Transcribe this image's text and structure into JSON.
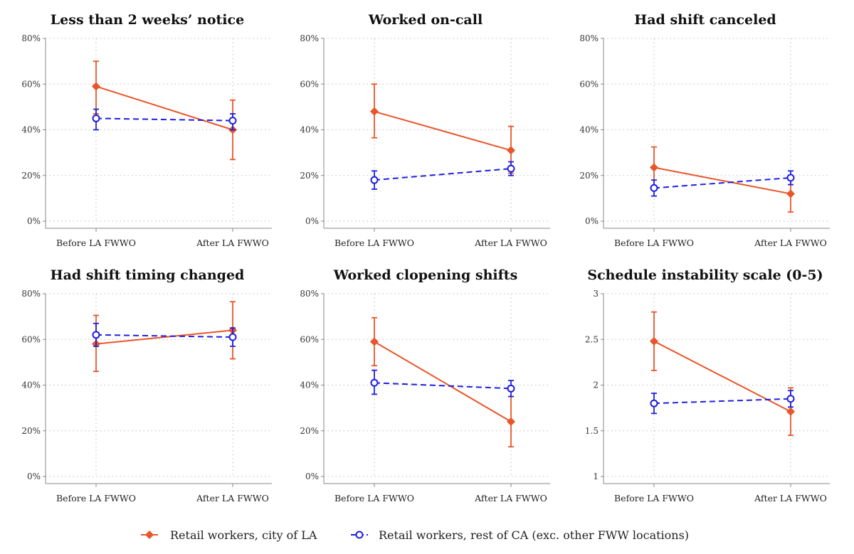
{
  "colors": {
    "la": "#e8562a",
    "ca": "#1f1fe0"
  },
  "legend": {
    "la_label": "Retail workers, city of LA",
    "ca_label": "Retail workers, rest of CA (exc. other FWW locations)"
  },
  "chart_data": [
    {
      "type": "line",
      "title": "Less than 2 weeks’ notice",
      "categories": [
        "Before LA FWWO",
        "After LA FWWO"
      ],
      "ylim": [
        0,
        80
      ],
      "yticks": [
        0,
        20,
        40,
        60,
        80
      ],
      "ytick_labels": [
        "0%",
        "20%",
        "40%",
        "60%",
        "80%"
      ],
      "grid": true,
      "series": [
        {
          "name": "Retail workers, city of LA",
          "values": [
            59,
            40
          ],
          "lower": [
            47,
            27
          ],
          "upper": [
            70,
            53
          ]
        },
        {
          "name": "Retail workers, rest of CA (exc. other FWW locations)",
          "values": [
            45,
            44
          ],
          "lower": [
            40,
            40
          ],
          "upper": [
            49,
            47
          ]
        }
      ]
    },
    {
      "type": "line",
      "title": "Worked on-call",
      "categories": [
        "Before LA FWWO",
        "After LA FWWO"
      ],
      "ylim": [
        0,
        80
      ],
      "yticks": [
        0,
        20,
        40,
        60,
        80
      ],
      "ytick_labels": [
        "0%",
        "20%",
        "40%",
        "60%",
        "80%"
      ],
      "grid": true,
      "series": [
        {
          "name": "Retail workers, city of LA",
          "values": [
            48,
            31
          ],
          "lower": [
            36.5,
            21
          ],
          "upper": [
            60,
            41.5
          ]
        },
        {
          "name": "Retail workers, rest of CA (exc. other FWW locations)",
          "values": [
            18,
            23
          ],
          "lower": [
            14,
            20
          ],
          "upper": [
            22,
            26
          ]
        }
      ]
    },
    {
      "type": "line",
      "title": "Had shift canceled",
      "categories": [
        "Before LA FWWO",
        "After LA FWWO"
      ],
      "ylim": [
        0,
        80
      ],
      "yticks": [
        0,
        20,
        40,
        60,
        80
      ],
      "ytick_labels": [
        "0%",
        "20%",
        "40%",
        "60%",
        "80%"
      ],
      "grid": true,
      "series": [
        {
          "name": "Retail workers, city of LA",
          "values": [
            23.5,
            12
          ],
          "lower": [
            14.5,
            4
          ],
          "upper": [
            32.5,
            20
          ]
        },
        {
          "name": "Retail workers, rest of CA (exc. other FWW locations)",
          "values": [
            14.5,
            19
          ],
          "lower": [
            11,
            16
          ],
          "upper": [
            18,
            22
          ]
        }
      ]
    },
    {
      "type": "line",
      "title": "Had shift timing changed",
      "categories": [
        "Before LA FWWO",
        "After LA FWWO"
      ],
      "ylim": [
        0,
        80
      ],
      "yticks": [
        0,
        20,
        40,
        60,
        80
      ],
      "ytick_labels": [
        "0%",
        "20%",
        "40%",
        "60%",
        "80%"
      ],
      "grid": true,
      "series": [
        {
          "name": "Retail workers, city of LA",
          "values": [
            58,
            64
          ],
          "lower": [
            46,
            51.5
          ],
          "upper": [
            70.5,
            76.5
          ]
        },
        {
          "name": "Retail workers, rest of CA (exc. other FWW locations)",
          "values": [
            62,
            61
          ],
          "lower": [
            57,
            57
          ],
          "upper": [
            67,
            65
          ]
        }
      ]
    },
    {
      "type": "line",
      "title": "Worked clopening shifts",
      "categories": [
        "Before LA FWWO",
        "After LA FWWO"
      ],
      "ylim": [
        0,
        80
      ],
      "yticks": [
        0,
        20,
        40,
        60,
        80
      ],
      "ytick_labels": [
        "0%",
        "20%",
        "40%",
        "60%",
        "80%"
      ],
      "grid": true,
      "series": [
        {
          "name": "Retail workers, city of LA",
          "values": [
            59,
            24
          ],
          "lower": [
            48.5,
            13
          ],
          "upper": [
            69.5,
            35
          ]
        },
        {
          "name": "Retail workers, rest of CA (exc. other FWW locations)",
          "values": [
            41,
            38.5
          ],
          "lower": [
            36,
            35
          ],
          "upper": [
            46.5,
            42
          ]
        }
      ]
    },
    {
      "type": "line",
      "title": "Schedule instability scale (0-5)",
      "categories": [
        "Before LA FWWO",
        "After LA FWWO"
      ],
      "ylim": [
        1,
        3
      ],
      "yticks": [
        1,
        1.5,
        2,
        2.5,
        3
      ],
      "ytick_labels": [
        "1",
        "1.5",
        "2",
        "2.5",
        "3"
      ],
      "grid": true,
      "series": [
        {
          "name": "Retail workers, city of LA",
          "values": [
            2.48,
            1.71
          ],
          "lower": [
            2.16,
            1.45
          ],
          "upper": [
            2.8,
            1.97
          ]
        },
        {
          "name": "Retail workers, rest of CA (exc. other FWW locations)",
          "values": [
            1.8,
            1.85
          ],
          "lower": [
            1.69,
            1.76
          ],
          "upper": [
            1.91,
            1.94
          ]
        }
      ]
    }
  ]
}
